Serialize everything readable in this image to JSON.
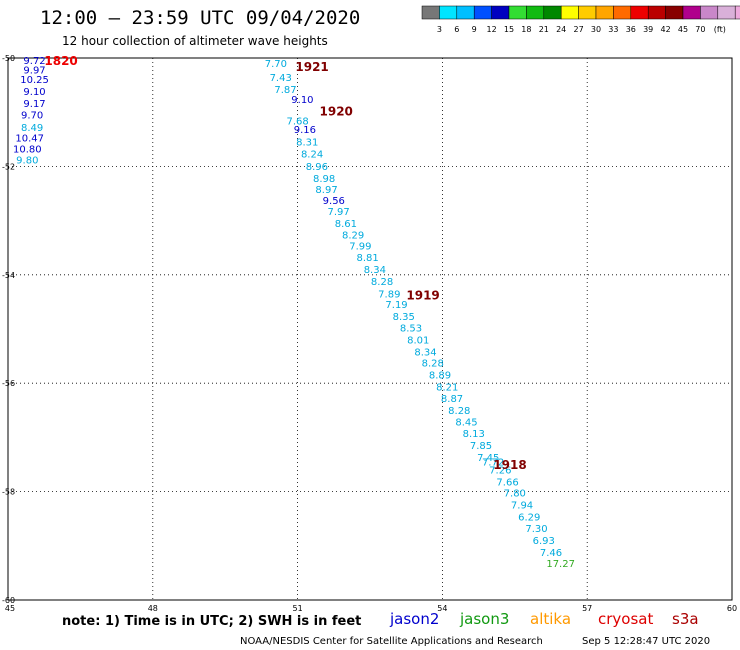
{
  "header": {
    "title": "12:00 – 23:59 UTC 09/04/2020",
    "subtitle": "12 hour collection of altimeter wave heights"
  },
  "colorbar": {
    "colors": [
      "#777777",
      "#00e5ff",
      "#00bfff",
      "#0050ff",
      "#0000c0",
      "#33dd33",
      "#11bb11",
      "#008800",
      "#ffff00",
      "#ffcc00",
      "#ffa500",
      "#ff6a00",
      "#ee0000",
      "#bb0000",
      "#880000",
      "#b0008c",
      "#c987c9",
      "#d9b0d9",
      "#eeaadd",
      "#000000"
    ],
    "labels": [
      "3",
      "6",
      "9",
      "12",
      "15",
      "18",
      "21",
      "24",
      "27",
      "30",
      "33",
      "36",
      "39",
      "42",
      "45",
      "70",
      "(ft)"
    ]
  },
  "chart_data": {
    "type": "scatter",
    "xlim": [
      45,
      60
    ],
    "ylim": [
      -60,
      -50
    ],
    "xticks": [
      "45",
      "48",
      "51",
      "54",
      "57",
      "60"
    ],
    "yticks": [
      "-50",
      "-52",
      "-54",
      "-56",
      "-58",
      "-60"
    ],
    "grid": true,
    "series": [
      {
        "name": "jason2",
        "color": "#0000cc",
        "points": [
          {
            "x": 45.55,
            "y": -50.05,
            "v": "9.72"
          },
          {
            "x": 45.55,
            "y": -50.22,
            "v": "9.97"
          },
          {
            "x": 45.55,
            "y": -50.4,
            "v": "10.25"
          },
          {
            "x": 45.55,
            "y": -50.62,
            "v": "9.10"
          },
          {
            "x": 45.55,
            "y": -50.84,
            "v": "9.17"
          },
          {
            "x": 45.5,
            "y": -51.05,
            "v": "9.70"
          },
          {
            "x": 45.45,
            "y": -51.48,
            "v": "10.47"
          },
          {
            "x": 45.4,
            "y": -51.68,
            "v": "10.80"
          },
          {
            "x": 51.1,
            "y": -50.77,
            "v": "9.10"
          },
          {
            "x": 51.15,
            "y": -51.32,
            "v": "9.16"
          },
          {
            "x": 51.75,
            "y": -52.63,
            "v": "9.56"
          }
        ]
      },
      {
        "name": "jason3",
        "color": "#00aadd",
        "points": [
          {
            "x": 45.5,
            "y": -51.28,
            "v": "8.49"
          },
          {
            "x": 45.4,
            "y": -51.88,
            "v": "9.80"
          },
          {
            "x": 50.55,
            "y": -50.1,
            "v": "7.70"
          },
          {
            "x": 50.65,
            "y": -50.36,
            "v": "7.43"
          },
          {
            "x": 50.75,
            "y": -50.58,
            "v": "7.87"
          },
          {
            "x": 51.0,
            "y": -51.16,
            "v": "7.68"
          },
          {
            "x": 51.2,
            "y": -51.55,
            "v": "8.31"
          },
          {
            "x": 51.3,
            "y": -51.77,
            "v": "8.24"
          },
          {
            "x": 51.4,
            "y": -52.0,
            "v": "8.96"
          },
          {
            "x": 51.55,
            "y": -52.22,
            "v": "8.98"
          },
          {
            "x": 51.6,
            "y": -52.43,
            "v": "8.97"
          },
          {
            "x": 51.85,
            "y": -52.83,
            "v": "7.97"
          },
          {
            "x": 52.0,
            "y": -53.05,
            "v": "8.61"
          },
          {
            "x": 52.15,
            "y": -53.27,
            "v": "8.29"
          },
          {
            "x": 52.3,
            "y": -53.47,
            "v": "7.99"
          },
          {
            "x": 52.45,
            "y": -53.68,
            "v": "8.81"
          },
          {
            "x": 52.6,
            "y": -53.9,
            "v": "8.34"
          },
          {
            "x": 52.75,
            "y": -54.12,
            "v": "8.28"
          },
          {
            "x": 52.9,
            "y": -54.35,
            "v": "7.89"
          },
          {
            "x": 53.05,
            "y": -54.55,
            "v": "7.19"
          },
          {
            "x": 53.2,
            "y": -54.77,
            "v": "8.35"
          },
          {
            "x": 53.35,
            "y": -54.98,
            "v": "8.53"
          },
          {
            "x": 53.5,
            "y": -55.2,
            "v": "8.01"
          },
          {
            "x": 53.65,
            "y": -55.42,
            "v": "8.34"
          },
          {
            "x": 53.8,
            "y": -55.63,
            "v": "8.28"
          },
          {
            "x": 53.95,
            "y": -55.85,
            "v": "8.89"
          },
          {
            "x": 54.1,
            "y": -56.07,
            "v": "8.21"
          },
          {
            "x": 54.2,
            "y": -56.28,
            "v": "8.87"
          },
          {
            "x": 54.35,
            "y": -56.5,
            "v": "8.28"
          },
          {
            "x": 54.5,
            "y": -56.72,
            "v": "8.45"
          },
          {
            "x": 54.65,
            "y": -56.93,
            "v": "8.13"
          },
          {
            "x": 54.8,
            "y": -57.15,
            "v": "7.85"
          },
          {
            "x": 54.95,
            "y": -57.37,
            "v": "7.45"
          },
          {
            "x": 55.05,
            "y": -57.45,
            "v": "7.72"
          },
          {
            "x": 55.2,
            "y": -57.6,
            "v": "7.26"
          },
          {
            "x": 55.35,
            "y": -57.82,
            "v": "7.66"
          },
          {
            "x": 55.5,
            "y": -58.03,
            "v": "7.80"
          },
          {
            "x": 55.65,
            "y": -58.25,
            "v": "7.94"
          },
          {
            "x": 55.8,
            "y": -58.47,
            "v": "6.29"
          },
          {
            "x": 55.95,
            "y": -58.68,
            "v": "7.30"
          },
          {
            "x": 56.1,
            "y": -58.9,
            "v": "6.93"
          },
          {
            "x": 56.25,
            "y": -59.12,
            "v": "7.46"
          }
        ]
      },
      {
        "name": "altika",
        "color": "#33aa22",
        "points": [
          {
            "x": 56.45,
            "y": -59.33,
            "v": "17.27"
          }
        ]
      }
    ],
    "track_labels": [
      {
        "x": 46.1,
        "y": -50.05,
        "text": "1820",
        "color": "#ee0000"
      },
      {
        "x": 51.3,
        "y": -50.16,
        "text": "1921",
        "color": "#800000"
      },
      {
        "x": 51.8,
        "y": -50.98,
        "text": "1920",
        "color": "#800000"
      },
      {
        "x": 53.6,
        "y": -54.37,
        "text": "1919",
        "color": "#800000"
      },
      {
        "x": 55.4,
        "y": -57.5,
        "text": "1918",
        "color": "#800000"
      }
    ]
  },
  "note": "note: 1) Time is in UTC; 2) SWH is in feet",
  "legend": [
    {
      "label": "jason2",
      "color": "#0000cc"
    },
    {
      "label": "jason3",
      "color": "#119911"
    },
    {
      "label": "altika",
      "color": "#ff9900"
    },
    {
      "label": "cryosat",
      "color": "#dd0000"
    },
    {
      "label": "s3a",
      "color": "#aa0000"
    }
  ],
  "footer": {
    "credit": "NOAA/NESDIS Center for Satellite Applications and Research",
    "timestamp": "Sep  5 12:28:47 UTC 2020"
  }
}
